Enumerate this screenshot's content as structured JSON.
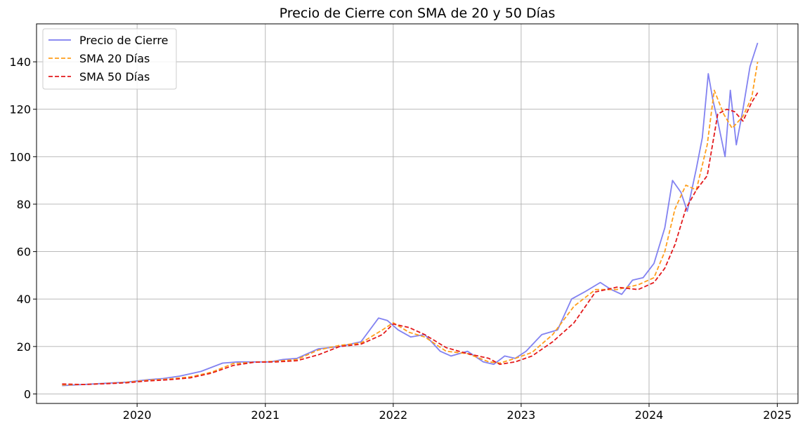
{
  "chart_data": {
    "type": "line",
    "title": "Precio de Cierre con SMA de 20 y 50 Días",
    "xlabel": "",
    "ylabel": "",
    "x_axis_type": "date",
    "xlim": [
      "2019-03-20",
      "2025-03-01"
    ],
    "ylim": [
      -4,
      156
    ],
    "x_ticks": [
      {
        "date": "2020-01-01",
        "label": "2020"
      },
      {
        "date": "2021-01-01",
        "label": "2021"
      },
      {
        "date": "2022-01-01",
        "label": "2022"
      },
      {
        "date": "2023-01-01",
        "label": "2023"
      },
      {
        "date": "2024-01-01",
        "label": "2024"
      },
      {
        "date": "2025-01-01",
        "label": "2025"
      }
    ],
    "y_ticks": [
      0,
      20,
      40,
      60,
      80,
      100,
      120,
      140
    ],
    "grid": true,
    "legend_position": "top-left",
    "series": [
      {
        "name": "Precio de Cierre",
        "color": "#7b7bf0",
        "dash": "solid",
        "x": [
          "2019-06-01",
          "2019-08-01",
          "2019-10-01",
          "2019-12-01",
          "2020-02-01",
          "2020-03-15",
          "2020-05-01",
          "2020-07-01",
          "2020-09-01",
          "2020-10-15",
          "2020-12-01",
          "2021-01-15",
          "2021-02-20",
          "2021-04-01",
          "2021-06-01",
          "2021-08-01",
          "2021-10-01",
          "2021-11-20",
          "2021-12-15",
          "2022-01-15",
          "2022-02-20",
          "2022-04-01",
          "2022-05-15",
          "2022-06-15",
          "2022-08-01",
          "2022-09-15",
          "2022-10-15",
          "2022-11-15",
          "2022-12-15",
          "2023-01-15",
          "2023-03-01",
          "2023-04-15",
          "2023-05-25",
          "2023-07-01",
          "2023-08-15",
          "2023-09-15",
          "2023-10-15",
          "2023-11-15",
          "2023-12-15",
          "2024-01-15",
          "2024-02-15",
          "2024-03-08",
          "2024-04-01",
          "2024-04-19",
          "2024-05-15",
          "2024-06-01",
          "2024-06-18",
          "2024-07-01",
          "2024-07-15",
          "2024-08-05",
          "2024-08-20",
          "2024-09-06",
          "2024-09-25",
          "2024-10-15",
          "2024-11-06"
        ],
        "y": [
          3.5,
          4.0,
          4.5,
          5.0,
          6.0,
          6.5,
          7.5,
          9.5,
          13.0,
          13.5,
          13.5,
          13.5,
          14.5,
          15.0,
          19.0,
          20.0,
          22.0,
          32.0,
          31.0,
          27.0,
          24.0,
          25.0,
          18.0,
          16.0,
          18.0,
          13.5,
          12.5,
          16.0,
          15.0,
          18.0,
          25.0,
          27.0,
          40.0,
          43.0,
          47.0,
          44.0,
          42.0,
          48.0,
          49.0,
          55.0,
          70.0,
          90.0,
          85.0,
          77.0,
          95.0,
          108.0,
          135.0,
          124.0,
          115.0,
          100.0,
          128.0,
          105.0,
          120.0,
          138.0,
          148.0
        ]
      },
      {
        "name": "SMA 20 Días",
        "color": "#ff9f1c",
        "dash": "dashed",
        "x": [
          "2019-06-01",
          "2019-08-01",
          "2019-10-01",
          "2019-12-01",
          "2020-02-01",
          "2020-04-01",
          "2020-06-01",
          "2020-08-01",
          "2020-10-01",
          "2020-12-01",
          "2021-02-01",
          "2021-04-01",
          "2021-06-01",
          "2021-08-01",
          "2021-10-01",
          "2021-12-01",
          "2022-01-01",
          "2022-02-15",
          "2022-04-01",
          "2022-06-01",
          "2022-08-01",
          "2022-10-01",
          "2022-11-01",
          "2022-12-15",
          "2023-02-01",
          "2023-04-01",
          "2023-06-01",
          "2023-08-01",
          "2023-10-01",
          "2023-12-01",
          "2024-01-15",
          "2024-02-15",
          "2024-03-15",
          "2024-04-15",
          "2024-05-15",
          "2024-06-15",
          "2024-07-05",
          "2024-08-01",
          "2024-08-25",
          "2024-09-25",
          "2024-10-20",
          "2024-11-06"
        ],
        "y": [
          3.8,
          4.0,
          4.4,
          4.9,
          5.8,
          6.3,
          7.2,
          9.2,
          12.8,
          13.4,
          13.8,
          14.5,
          18.5,
          20.5,
          21.5,
          27.0,
          30.0,
          26.0,
          24.0,
          18.0,
          17.0,
          13.5,
          13.0,
          15.0,
          17.5,
          25.0,
          37.0,
          44.0,
          44.0,
          46.0,
          49.0,
          60.0,
          78.0,
          88.0,
          86.0,
          105.0,
          128.0,
          118.0,
          112.0,
          117.0,
          125.0,
          140.0
        ]
      },
      {
        "name": "SMA 50 Días",
        "color": "#e31a1c",
        "dash": "dashed",
        "x": [
          "2019-06-01",
          "2019-08-01",
          "2019-10-01",
          "2019-12-01",
          "2020-02-01",
          "2020-04-01",
          "2020-06-01",
          "2020-08-01",
          "2020-10-01",
          "2020-12-01",
          "2021-02-01",
          "2021-04-01",
          "2021-06-01",
          "2021-08-01",
          "2021-10-01",
          "2021-12-01",
          "2022-01-01",
          "2022-02-15",
          "2022-04-01",
          "2022-06-01",
          "2022-08-01",
          "2022-10-01",
          "2022-11-01",
          "2022-12-15",
          "2023-02-01",
          "2023-04-01",
          "2023-06-01",
          "2023-08-01",
          "2023-10-01",
          "2023-12-01",
          "2024-01-15",
          "2024-02-15",
          "2024-03-15",
          "2024-04-15",
          "2024-05-15",
          "2024-06-15",
          "2024-07-15",
          "2024-08-10",
          "2024-09-01",
          "2024-09-25",
          "2024-10-20",
          "2024-11-06"
        ],
        "y": [
          4.2,
          4.0,
          4.3,
          4.7,
          5.5,
          6.0,
          6.8,
          8.8,
          12.0,
          13.4,
          13.5,
          14.0,
          16.5,
          20.0,
          21.0,
          25.0,
          29.5,
          28.0,
          25.0,
          19.5,
          17.0,
          15.0,
          12.5,
          13.5,
          16.0,
          22.0,
          30.0,
          43.0,
          45.0,
          44.0,
          47.0,
          53.0,
          63.0,
          78.0,
          86.0,
          92.0,
          118.0,
          120.0,
          119.0,
          115.0,
          123.0,
          127.0
        ]
      }
    ]
  }
}
